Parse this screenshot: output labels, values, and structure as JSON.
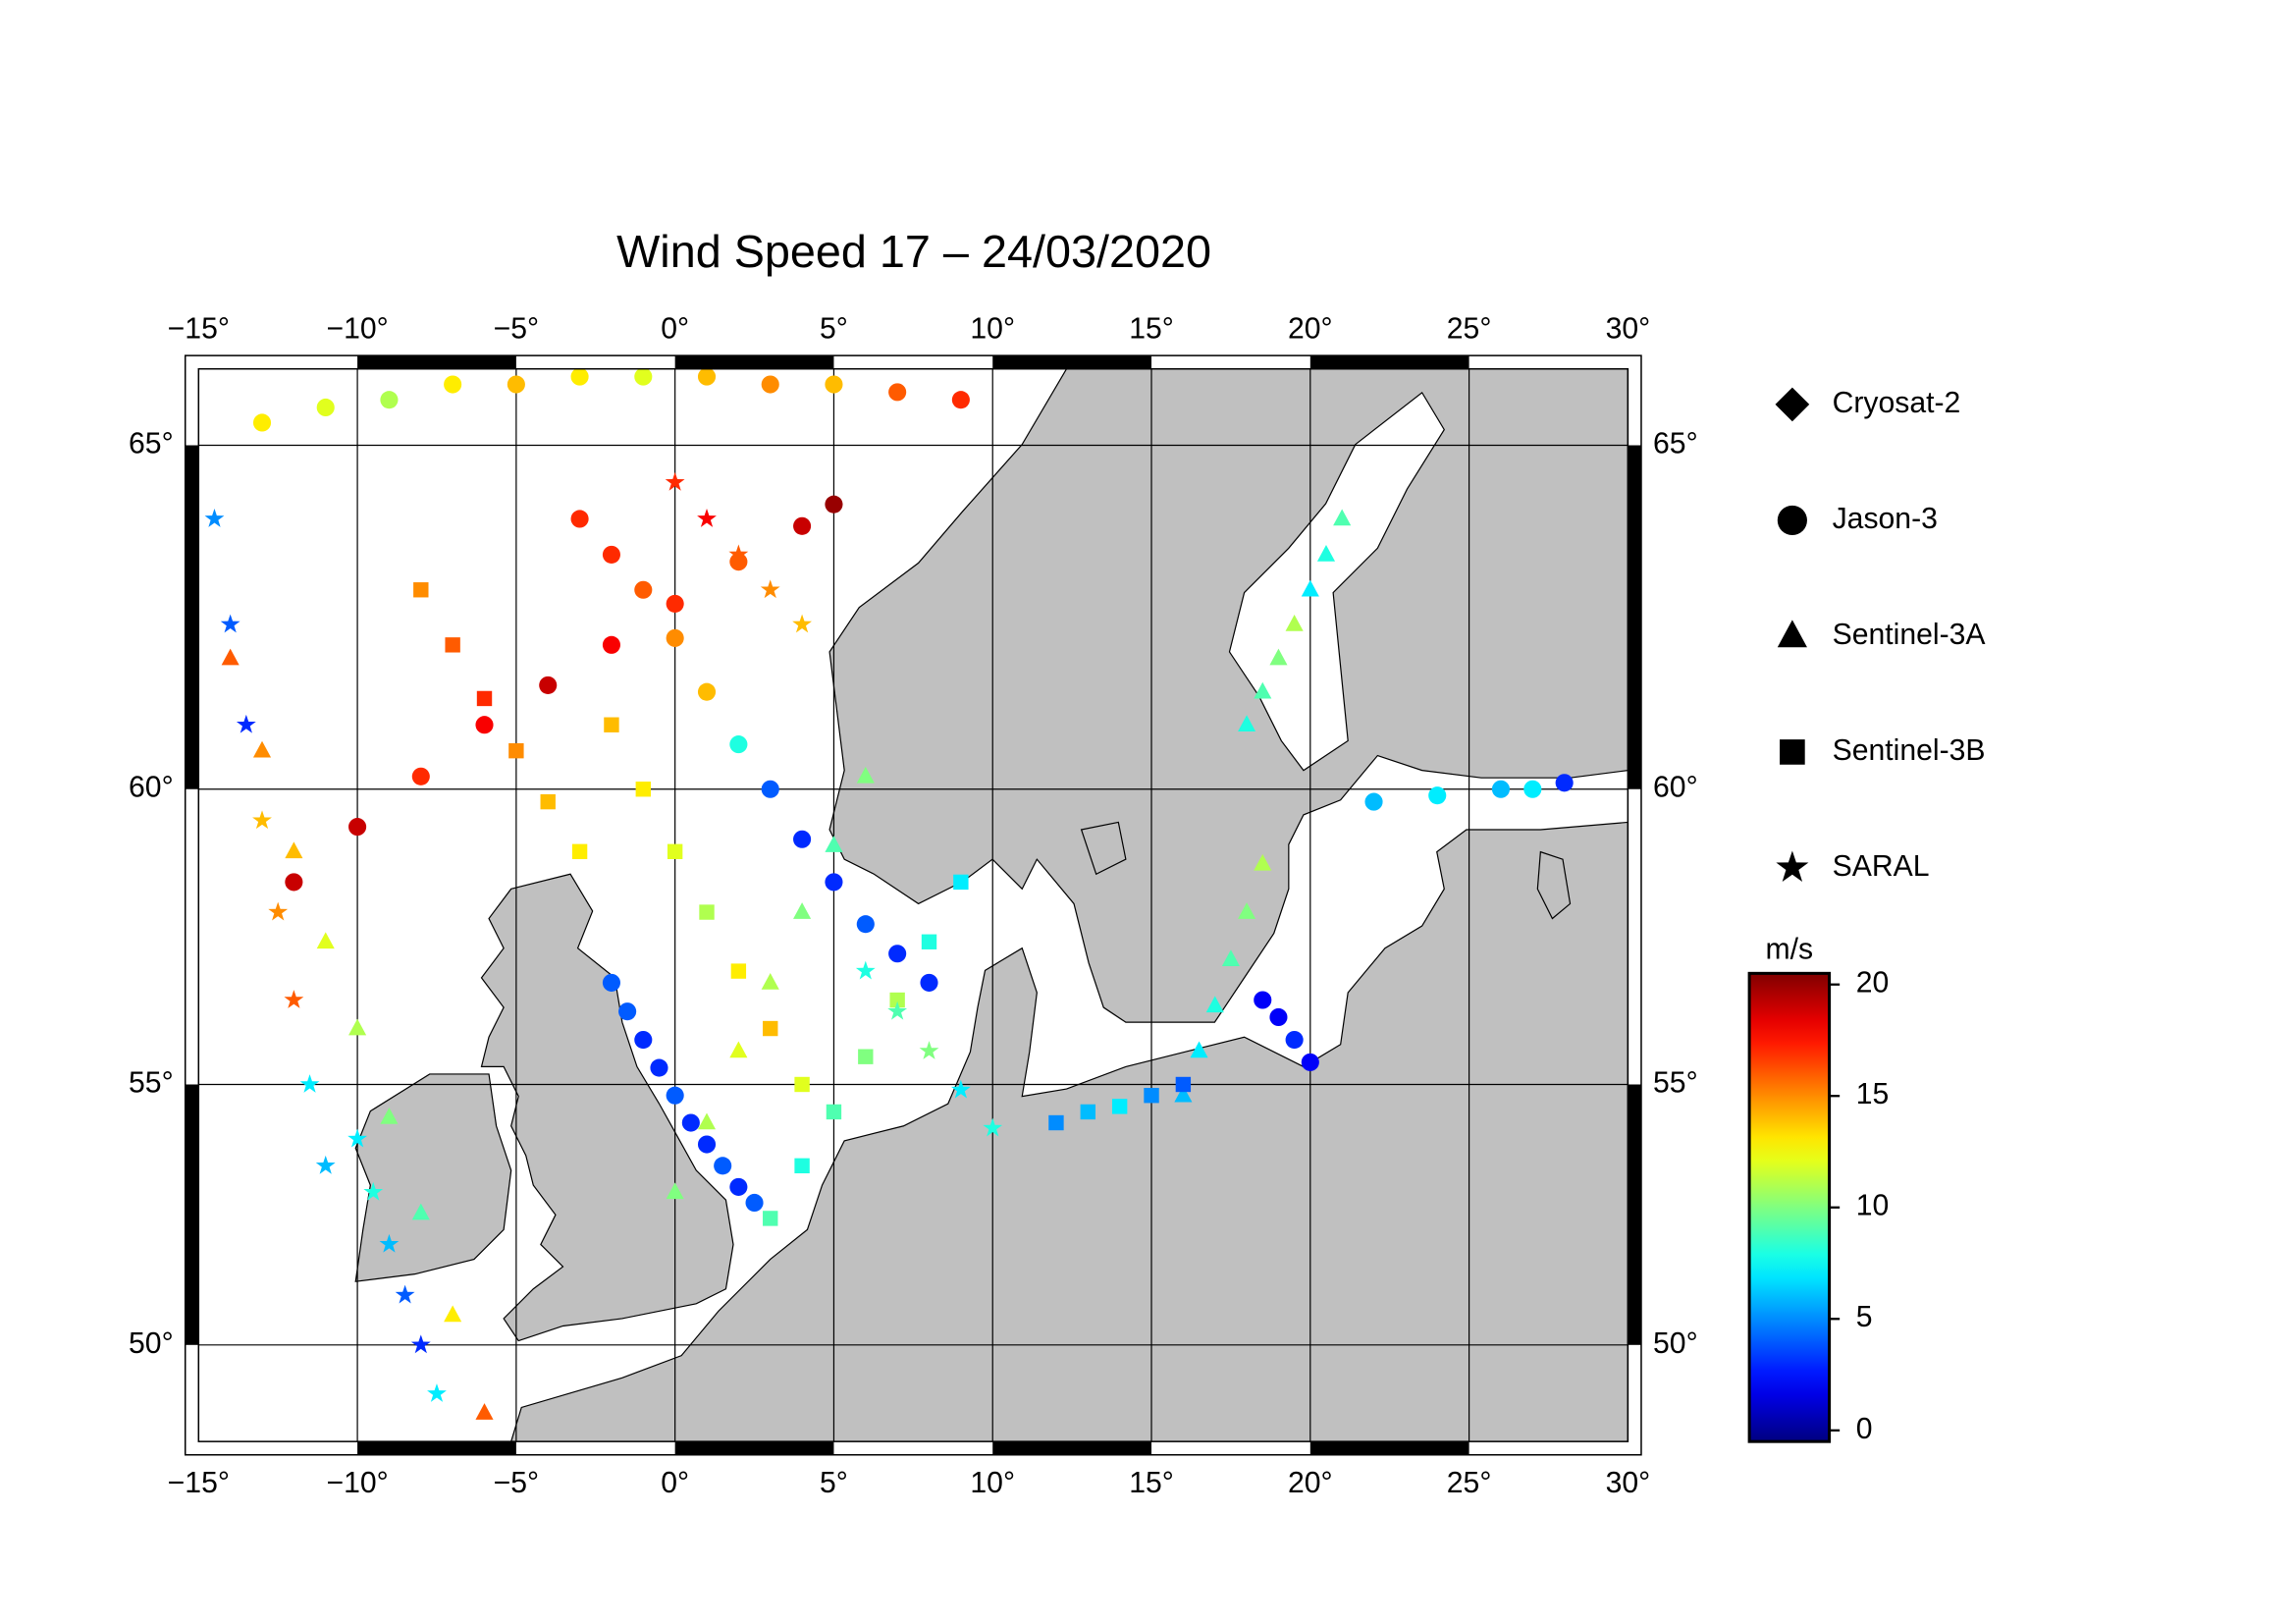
{
  "chart_data": {
    "type": "scatter",
    "title": "Wind Speed 17 – 24/03/2020",
    "projection": "mercator",
    "xlim": [
      -15,
      30
    ],
    "ylim": [
      48,
      66
    ],
    "xticks": [
      {
        "value": -15,
        "label": "−15°"
      },
      {
        "value": -10,
        "label": "−10°"
      },
      {
        "value": -5,
        "label": "−5°"
      },
      {
        "value": 0,
        "label": "0°"
      },
      {
        "value": 5,
        "label": "5°"
      },
      {
        "value": 10,
        "label": "10°"
      },
      {
        "value": 15,
        "label": "15°"
      },
      {
        "value": 20,
        "label": "20°"
      },
      {
        "value": 25,
        "label": "25°"
      },
      {
        "value": 30,
        "label": "30°"
      }
    ],
    "yticks": [
      {
        "value": 50,
        "label": "50°"
      },
      {
        "value": 55,
        "label": "55°"
      },
      {
        "value": 60,
        "label": "60°"
      },
      {
        "value": 65,
        "label": "65°"
      }
    ],
    "grid": true,
    "colorbar": {
      "label": "m/s",
      "lim": [
        -0.5,
        20.5
      ],
      "ticks": [
        0,
        5,
        10,
        15,
        20
      ],
      "colormap": "jet"
    },
    "series": [
      {
        "name": "Cryosat-2",
        "marker": "diamond",
        "lon": [],
        "lat": [],
        "values": []
      },
      {
        "name": "Jason-3",
        "marker": "circle",
        "lon": [
          -3,
          -2,
          -1,
          0,
          1,
          2,
          3,
          4,
          5,
          6,
          7,
          8,
          -12,
          -10,
          -8,
          -6,
          -4,
          -2,
          0,
          2,
          4,
          5,
          -2,
          -1.5,
          -1,
          -0.5,
          0,
          0.5,
          1,
          1.5,
          2,
          2.5,
          18.5,
          19,
          19.5,
          20,
          22,
          24,
          26,
          27,
          28,
          -13,
          -11,
          -9,
          -7,
          -5,
          -3,
          -1,
          1,
          3,
          5,
          7,
          9
        ],
        "lat": [
          64,
          63.5,
          63,
          62.3,
          61.5,
          60.7,
          60,
          59.2,
          58.5,
          57.8,
          57.3,
          56.8,
          58.5,
          59.4,
          60.2,
          61,
          61.6,
          62.2,
          62.8,
          63.4,
          63.9,
          64.2,
          56.8,
          56.3,
          55.8,
          55.3,
          54.8,
          54.3,
          53.9,
          53.5,
          53.1,
          52.8,
          56.5,
          56.2,
          55.8,
          55.4,
          59.8,
          59.9,
          60,
          60,
          60.1,
          65.3,
          65.5,
          65.6,
          65.8,
          65.8,
          65.9,
          65.9,
          65.9,
          65.8,
          65.8,
          65.7,
          65.6
        ],
        "values": [
          17,
          17,
          16,
          15,
          14,
          8,
          4,
          3,
          3,
          4,
          3,
          3,
          19,
          19,
          17,
          18,
          19,
          18,
          17,
          16,
          19,
          20,
          4,
          4,
          3,
          3,
          4,
          3,
          3,
          4,
          3,
          4,
          2,
          2,
          3,
          2,
          6,
          7,
          6,
          7,
          3,
          13,
          12,
          11,
          13,
          14,
          13,
          12,
          14,
          15,
          14,
          16,
          17
        ]
      },
      {
        "name": "Sentinel-3A",
        "marker": "triangle",
        "lon": [
          -14,
          -13,
          -12,
          -11,
          -10,
          -9,
          -8,
          -7,
          -6,
          0,
          1,
          2,
          3,
          4,
          5,
          6,
          18,
          18.5,
          19,
          19.5,
          20,
          20.5,
          21,
          16,
          16.5,
          17,
          17.5,
          18,
          18.5
        ],
        "lat": [
          62,
          60.6,
          59,
          57.5,
          56,
          54.4,
          52.6,
          50.6,
          48.6,
          53,
          54.3,
          55.6,
          56.8,
          58,
          59.1,
          60.2,
          61,
          61.5,
          62,
          62.5,
          63,
          63.5,
          64,
          54.8,
          55.6,
          56.4,
          57.2,
          58,
          58.8
        ],
        "values": [
          16,
          15,
          14,
          12,
          11,
          10,
          9,
          13,
          16,
          10,
          11,
          12,
          11,
          10,
          9,
          10,
          8,
          9,
          10,
          11,
          7,
          8,
          9,
          6,
          7,
          8,
          9,
          10,
          11
        ]
      },
      {
        "name": "Sentinel-3B",
        "marker": "square",
        "lon": [
          -2,
          -1,
          0,
          1,
          2,
          3,
          4,
          3,
          4,
          5,
          6,
          7,
          8,
          9,
          12,
          13,
          14,
          15,
          16,
          -8,
          -7,
          -6,
          -5,
          -4,
          -3
        ],
        "lat": [
          61,
          60,
          59,
          58,
          57,
          56,
          55,
          52.5,
          53.5,
          54.5,
          55.5,
          56.5,
          57.5,
          58.5,
          54.3,
          54.5,
          54.6,
          54.8,
          55,
          63,
          62.2,
          61.4,
          60.6,
          59.8,
          59
        ],
        "values": [
          14,
          13,
          12,
          11,
          13,
          14,
          12,
          9,
          8,
          9,
          10,
          11,
          8,
          7,
          5,
          6,
          7,
          5,
          4,
          15,
          16,
          17,
          15,
          14,
          13
        ]
      },
      {
        "name": "SARAL",
        "marker": "star",
        "lon": [
          -14.5,
          -14,
          -13.5,
          -13,
          -12.5,
          -12,
          -11.5,
          -11,
          -10,
          -9.5,
          -9,
          -8.5,
          -8,
          -7.5,
          6,
          7,
          8,
          9,
          10,
          0,
          1,
          2,
          3,
          4
        ],
        "lat": [
          64,
          62.5,
          61,
          59.5,
          58,
          56.5,
          55,
          53.5,
          54,
          53,
          52,
          51,
          50,
          49,
          57,
          56.3,
          55.6,
          54.9,
          54.2,
          64.5,
          64,
          63.5,
          63,
          62.5
        ],
        "values": [
          5,
          4,
          3,
          14,
          15,
          16,
          7,
          6,
          7,
          8,
          6,
          4,
          3,
          7,
          8,
          9,
          10,
          7,
          8,
          17,
          18,
          16,
          15,
          14
        ]
      }
    ]
  }
}
